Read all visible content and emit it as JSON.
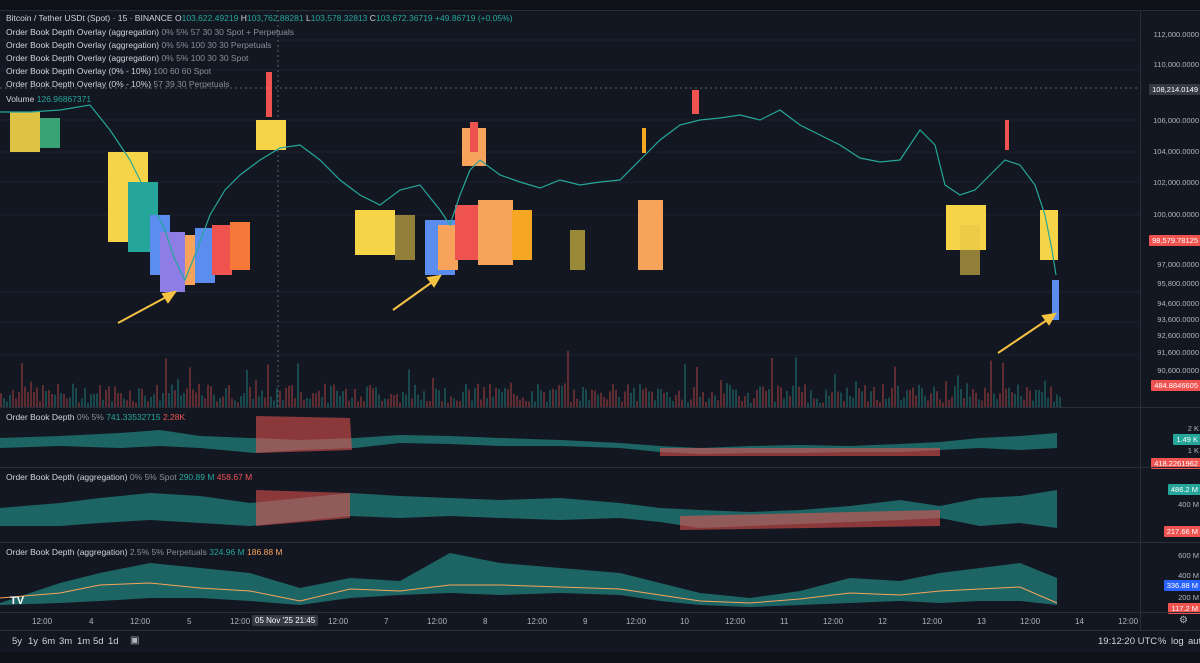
{
  "symbol": {
    "title": "Bitcoin / Tether USDt (Spot) · 15 · BINANCE",
    "open_label": "O",
    "open": "103,622.49219",
    "high_label": "H",
    "high": "103,762.88281",
    "low_label": "L",
    "low": "103,578.32813",
    "close_label": "C",
    "close": "103,672.36719",
    "change": "+49.86719 (+0.05%)"
  },
  "indicators": [
    {
      "name": "Order Book Depth Overlay (aggregation)",
      "params": "0% 5% 57 30 30 Spot + Perpetuals"
    },
    {
      "name": "Order Book Depth Overlay (aggregation)",
      "params": "0% 5% 100 30 30 Perpetuals"
    },
    {
      "name": "Order Book Depth Overlay (aggregation)",
      "params": "0% 5% 100 30 30 Spot"
    },
    {
      "name": "Order Book Depth Overlay (0% - 10%)",
      "params": "100 60 60 Spot"
    },
    {
      "name": "Order Book Depth Overlay (0% - 10%)",
      "params": "57 39 30 Perpetuals"
    }
  ],
  "volume": {
    "name": "Volume",
    "value": "126.96867371"
  },
  "price_axis": {
    "ticks": [
      "112,000.0000",
      "110,000.0000",
      "106,000.0000",
      "104,000.0000",
      "102,000.0000",
      "100,000.0000",
      "97,000.0000",
      "95,800.0000",
      "94,600.0000",
      "93,600.0000",
      "92,600.0000",
      "91,600.0000",
      "90,600.0000",
      "89,600.0000"
    ],
    "crosshair_price": "108,214.0149",
    "last_price": "98,579.78125",
    "volume_tag": "484.8846605"
  },
  "pane1": {
    "name": "Order Book Depth",
    "params": "0% 5%",
    "v1": "741.33532715",
    "v2": "2.28K",
    "ticks": [
      "2 K",
      "1 K",
      "600 M"
    ],
    "tag_green": "1.49 K",
    "tag_red": "418.2261962"
  },
  "pane2": {
    "name": "Order Book Depth (aggregation)",
    "params": "0% 5% Spot",
    "v1": "290.89 M",
    "v2": "458.67 M",
    "ticks": [
      "400 M"
    ],
    "tag_green": "486.2 M",
    "tag_red": "217.66 M"
  },
  "pane3": {
    "name": "Order Book Depth (aggregation)",
    "params": "2.5% 5% Perpetuals",
    "v1": "324.96 M",
    "v2": "186.88 M",
    "ticks": [
      "600 M",
      "400 M",
      "200 M"
    ],
    "tag_blue": "336.88 M",
    "tag_red": "117.2 M"
  },
  "time_axis": {
    "labels": [
      "12:00",
      "4",
      "12:00",
      "5",
      "12:00",
      "12:00",
      "7",
      "12:00",
      "8",
      "12:00",
      "9",
      "12:00",
      "10",
      "12:00",
      "11",
      "12:00",
      "12",
      "12:00",
      "13",
      "12:00",
      "14",
      "12:00"
    ],
    "crosshair_date": "05 Nov '25",
    "crosshair_time": "21:45"
  },
  "bottom": {
    "ranges": [
      "5y",
      "1y",
      "6m",
      "3m",
      "1m",
      "5d",
      "1d"
    ],
    "clock": "19:12:20 UTC",
    "percent": "%",
    "log": "log",
    "auto": "auto"
  },
  "logo": "TV",
  "colors": {
    "bg": "#131722",
    "green": "#26a69a",
    "red": "#ef5350",
    "orange": "#f7a35c",
    "yellow": "#f5d547",
    "blue": "#5b8def",
    "arrow": "#f5c242"
  }
}
